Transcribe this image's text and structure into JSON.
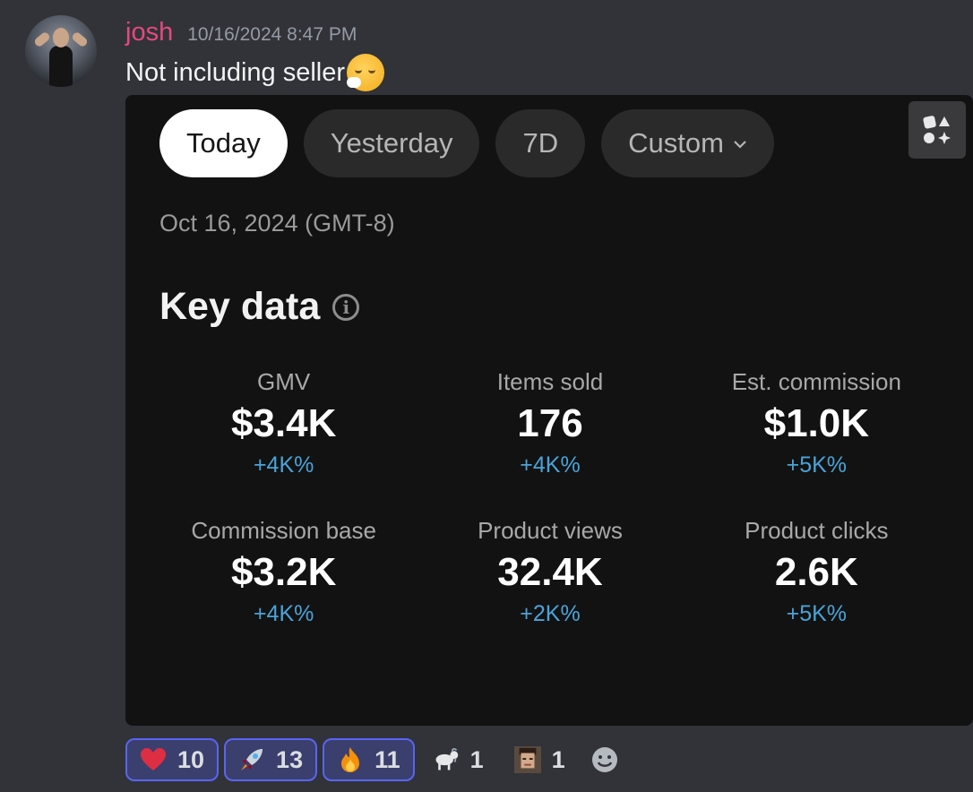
{
  "message": {
    "username": "josh",
    "timestamp": "10/16/2024 8:47 PM",
    "text": "Not including seller"
  },
  "card": {
    "tabs": [
      {
        "label": "Today",
        "active": true
      },
      {
        "label": "Yesterday",
        "active": false
      },
      {
        "label": "7D",
        "active": false
      },
      {
        "label": "Custom",
        "active": false
      }
    ],
    "date": "Oct 16, 2024 (GMT-8)",
    "section_title": "Key data",
    "metrics": [
      {
        "label": "GMV",
        "value": "$3.4K",
        "change": "+4K%"
      },
      {
        "label": "Items sold",
        "value": "176",
        "change": "+4K%"
      },
      {
        "label": "Est. commission",
        "value": "$1.0K",
        "change": "+5K%"
      },
      {
        "label": "Commission base",
        "value": "$3.2K",
        "change": "+4K%"
      },
      {
        "label": "Product views",
        "value": "32.4K",
        "change": "+2K%"
      },
      {
        "label": "Product clicks",
        "value": "2.6K",
        "change": "+5K%"
      }
    ]
  },
  "reactions": [
    {
      "icon": "heart-icon",
      "count": "10",
      "mine": true
    },
    {
      "icon": "rocket-icon",
      "count": "13",
      "mine": true
    },
    {
      "icon": "fire-icon",
      "count": "11",
      "mine": true
    },
    {
      "icon": "goat-icon",
      "count": "1",
      "mine": false
    },
    {
      "icon": "custom-face-icon",
      "count": "1",
      "mine": false
    }
  ],
  "colors": {
    "background": "#313338",
    "username": "#e4497f",
    "card": "#121212",
    "change_positive": "#4aa3d8",
    "reaction_active_border": "#5865f2"
  }
}
